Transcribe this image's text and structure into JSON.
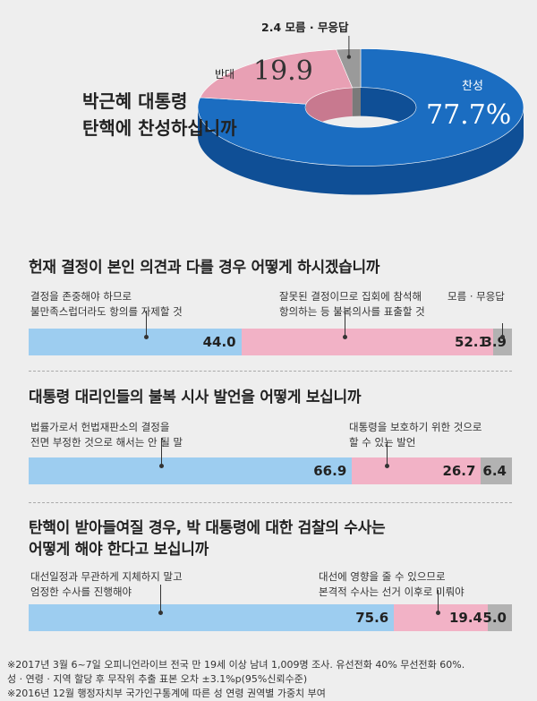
{
  "colors": {
    "agree": "#1b6dc1",
    "agree_side": "#0f4f96",
    "disagree": "#e8a0b4",
    "disagree_side": "#c8798f",
    "neutral": "#9a9a9a",
    "neutral_side": "#7a7a7a",
    "bar_blue": "#9dcdf0",
    "bar_pink": "#f2b2c6",
    "bar_gray": "#b2b2b2",
    "agree_label": "#ffffff",
    "disagree_label": "#333333"
  },
  "main_question": {
    "line1": "박근혜 대통령",
    "line2": "탄핵에 찬성하십니까"
  },
  "chart_data": [
    {
      "type": "pie",
      "title": "박근혜 대통령 탄핵에 찬성하십니까",
      "slices": [
        {
          "label": "찬성",
          "value": 77.7,
          "value_text": "77.7%"
        },
        {
          "label": "반대",
          "value": 19.9,
          "value_text": "19.9"
        },
        {
          "label": "모름 · 무응답",
          "value": 2.4,
          "value_text": "2.4"
        }
      ],
      "neutral_label_text": "2.4 모름 · 무응답"
    },
    {
      "type": "bar",
      "title": "헌재 결정이 본인 의견과 다를 경우 어떻게 하시겠습니까",
      "segments": [
        {
          "label": "결정을 존중해야 하므로\n불만족스럽더라도 항의를 자제할 것",
          "value": 44.0,
          "value_text": "44.0"
        },
        {
          "label": "잘못된 결정이므로 집회에 참석해\n항의하는 등 불복의사를 표출할 것",
          "value": 52.1,
          "value_text": "52.1"
        },
        {
          "label": "모름 · 무응답",
          "value": 3.9,
          "value_text": "3.9"
        }
      ]
    },
    {
      "type": "bar",
      "title": "대통령 대리인들의 불복 시사 발언을 어떻게 보십니까",
      "segments": [
        {
          "label": "법률가로서 헌법재판소의 결정을\n전면 부정한 것으로 해서는 안 될 말",
          "value": 66.9,
          "value_text": "66.9"
        },
        {
          "label": "대통령을 보호하기 위한 것으로\n할 수 있는 발언",
          "value": 26.7,
          "value_text": "26.7"
        },
        {
          "label": "",
          "value": 6.4,
          "value_text": "6.4"
        }
      ]
    },
    {
      "type": "bar",
      "title": "탄핵이 받아들여질 경우, 박 대통령에 대한 검찰의 수사는\n어떻게 해야 한다고 보십니까",
      "segments": [
        {
          "label": "대선일정과 무관하게 지체하지 말고\n엄정한 수사를 진행해야",
          "value": 75.6,
          "value_text": "75.6"
        },
        {
          "label": "대선에 영향을 줄 수 있으므로\n본격적 수사는 선거 이후로 미뤄야",
          "value": 19.4,
          "value_text": "19.4"
        },
        {
          "label": "",
          "value": 5.0,
          "value_text": "5.0"
        }
      ]
    }
  ],
  "footnotes": [
    "※2017년 3월 6~7일 오피니언라이브 전국 만 19세 이상 남녀 1,009명 조사.  유선전화 40% 무선전화 60%.",
    "  성 · 연령 · 지역 할당 후 무작위 추출 표본 오차 ±3.1%p(95%신뢰수준)",
    "※2016년 12월 행정자치부 국가인구통계에 따른 성 연령 권역별 가중치 부여"
  ]
}
